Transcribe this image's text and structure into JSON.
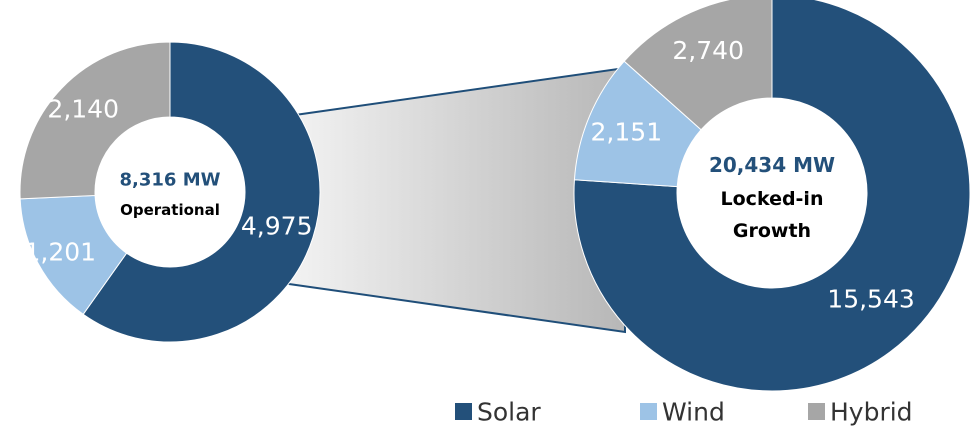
{
  "chart_data": [
    {
      "type": "pie",
      "variant": "donut",
      "center": {
        "value": "8,316 MW",
        "caption": [
          "Operational"
        ]
      },
      "slices": [
        {
          "name": "Solar",
          "value": 4975,
          "label": "4,975"
        },
        {
          "name": "Wind",
          "value": 1201,
          "label": "1,201"
        },
        {
          "name": "Hybrid",
          "value": 2140,
          "label": "2,140"
        }
      ]
    },
    {
      "type": "pie",
      "variant": "donut",
      "center": {
        "value": "20,434 MW",
        "caption": [
          "Locked-in",
          "Growth"
        ]
      },
      "slices": [
        {
          "name": "Solar",
          "value": 15543,
          "label": "15,543"
        },
        {
          "name": "Wind",
          "value": 2151,
          "label": "2,151"
        },
        {
          "name": "Hybrid",
          "value": 2740,
          "label": "2,740"
        }
      ]
    }
  ],
  "legend": {
    "placement": "bottom-right",
    "items": [
      {
        "name": "Solar",
        "label": "Solar",
        "color": "#23507a"
      },
      {
        "name": "Wind",
        "label": "Wind",
        "color": "#9dc3e6"
      },
      {
        "name": "Hybrid",
        "label": "Hybrid",
        "color": "#a6a6a6"
      }
    ]
  },
  "connector": {
    "colors": [
      "#f4f4f4",
      "#b7b7b7"
    ]
  }
}
